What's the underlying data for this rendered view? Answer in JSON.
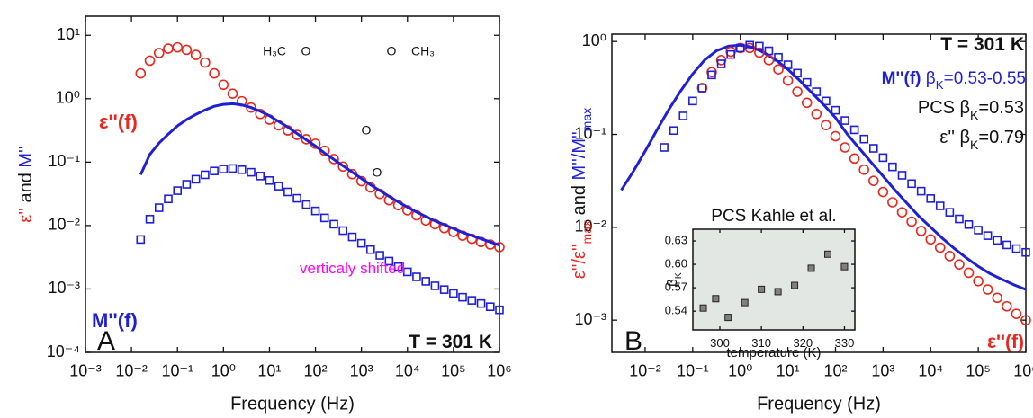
{
  "chart_data": [
    {
      "type": "scatter",
      "xscale": "log",
      "yscale": "log",
      "x_label": "Frequency (Hz)",
      "y_label": [
        {
          "text": "ε''",
          "color": "#e8281e"
        },
        {
          "text": " and "
        },
        {
          "text": "M''",
          "color": "#1f1fd6"
        }
      ],
      "xlim": [
        0.001,
        1000000
      ],
      "ylim": [
        0.0001,
        20
      ],
      "xticks": [
        {
          "value": 0.001,
          "label": "10⁻³"
        },
        {
          "value": 0.01,
          "label": "10⁻²"
        },
        {
          "value": 0.1,
          "label": "10⁻¹"
        },
        {
          "value": 1,
          "label": "10⁰"
        },
        {
          "value": 10,
          "label": "10¹"
        },
        {
          "value": 100,
          "label": "10²"
        },
        {
          "value": 1000,
          "label": "10³"
        },
        {
          "value": 10000,
          "label": "10⁴"
        },
        {
          "value": 100000,
          "label": "10⁵"
        },
        {
          "value": 1000000,
          "label": "10⁶"
        }
      ],
      "yticks": [
        {
          "value": 0.0001,
          "label": "10⁻⁴"
        },
        {
          "value": 0.001,
          "label": "10⁻³"
        },
        {
          "value": 0.01,
          "label": "10⁻²"
        },
        {
          "value": 0.1,
          "label": "10⁻¹"
        },
        {
          "value": 1,
          "label": "10⁰"
        },
        {
          "value": 10,
          "label": "10¹"
        }
      ],
      "series": [
        {
          "marker": "circle",
          "color": "#e8281e",
          "x": [
            0.0158,
            0.0251,
            0.0398,
            0.0631,
            0.1,
            0.158,
            0.251,
            0.398,
            0.631,
            1,
            1.58,
            2.51,
            3.98,
            6.31,
            10,
            15.8,
            25.1,
            39.8,
            63.1,
            100,
            158,
            251,
            398,
            631,
            1000,
            1580,
            2510,
            3980,
            6310,
            10000,
            15800,
            25100,
            39800,
            63100,
            100000,
            158000,
            251000,
            398000,
            631000,
            1000000
          ],
          "values": [
            2.51,
            3.98,
            5.25,
            6.17,
            6.46,
            5.89,
            4.9,
            3.72,
            2.51,
            1.66,
            1.2,
            0.912,
            0.724,
            0.575,
            0.468,
            0.38,
            0.316,
            0.269,
            0.229,
            0.195,
            0.151,
            0.112,
            0.0851,
            0.0646,
            0.0501,
            0.0398,
            0.0316,
            0.0251,
            0.0209,
            0.0174,
            0.0145,
            0.012,
            0.0105,
            0.00912,
            0.00794,
            0.00692,
            0.00617,
            0.0055,
            0.00501,
            0.00457
          ]
        },
        {
          "marker": "square",
          "color": "#1f1fd6",
          "x": [
            0.0158,
            0.0251,
            0.0398,
            0.0631,
            0.1,
            0.158,
            0.251,
            0.398,
            0.631,
            1,
            1.58,
            2.51,
            3.98,
            6.31,
            10,
            15.8,
            25.1,
            39.8,
            63.1,
            100,
            158,
            251,
            398,
            631,
            1000,
            1580,
            2510,
            3980,
            6310,
            10000,
            15800,
            25100,
            39800,
            63100,
            100000,
            158000,
            251000,
            398000,
            631000,
            1000000
          ],
          "values": [
            0.00603,
            0.0126,
            0.0191,
            0.0263,
            0.0355,
            0.0447,
            0.0537,
            0.0631,
            0.0724,
            0.0776,
            0.0794,
            0.0759,
            0.0692,
            0.0603,
            0.0513,
            0.0417,
            0.0339,
            0.0269,
            0.0214,
            0.017,
            0.0132,
            0.0105,
            0.00832,
            0.00661,
            0.00525,
            0.00417,
            0.00339,
            0.00275,
            0.00224,
            0.00186,
            0.00155,
            0.00132,
            0.00112,
            0.000977,
            0.000851,
            0.000741,
            0.000661,
            0.000589,
            0.000525,
            0.000468
          ]
        },
        {
          "marker": "line",
          "color": "#1f1fd6",
          "x": [
            0.0158,
            0.0251,
            0.0398,
            0.0631,
            0.1,
            0.158,
            0.251,
            0.398,
            0.631,
            1,
            1.58,
            2.51,
            3.98,
            6.31,
            10,
            15.8,
            25.1,
            39.8,
            63.1,
            100,
            158,
            251,
            398,
            631,
            1000,
            1580,
            2510,
            3980,
            6310,
            10000,
            15800,
            25100,
            39800,
            63100,
            100000,
            158000,
            251000,
            398000,
            631000,
            1000000
          ],
          "values": [
            0.0633,
            0.132,
            0.2,
            0.276,
            0.373,
            0.469,
            0.564,
            0.663,
            0.76,
            0.815,
            0.834,
            0.797,
            0.727,
            0.633,
            0.539,
            0.438,
            0.356,
            0.282,
            0.225,
            0.179,
            0.139,
            0.11,
            0.0874,
            0.0694,
            0.0551,
            0.0438,
            0.0356,
            0.0289,
            0.0235,
            0.0195,
            0.0163,
            0.0139,
            0.0118,
            0.0103,
            0.00894,
            0.00778,
            0.00694,
            0.00618,
            0.00551,
            0.00491
          ]
        }
      ],
      "annotations": [
        {
          "segments": [
            {
              "text": "ε''(f)",
              "bold": true,
              "color": "#e8281e"
            }
          ]
        },
        {
          "segments": [
            {
              "text": "M''(f)",
              "bold": true,
              "color": "#1f1fd6"
            }
          ]
        },
        {
          "segments": [
            {
              "text": "verticaly shifted",
              "color": "#ff00ff"
            }
          ]
        },
        {
          "segments": [
            {
              "text": "A"
            }
          ]
        },
        {
          "segments": [
            {
              "text": "T = 301 K",
              "bold": true
            }
          ]
        }
      ],
      "structure_labels": [
        "H₃C",
        "O",
        "O",
        "CH₃",
        "O",
        "O"
      ]
    },
    {
      "type": "scatter",
      "xscale": "log",
      "yscale": "log",
      "x_label": "Frequency (Hz)",
      "y_label": [
        {
          "text": "ε''/ε''",
          "color": "#e8281e"
        },
        {
          "text": "max",
          "sub": true,
          "color": "#e8281e"
        },
        {
          "text": " and "
        },
        {
          "text": "M''/M''",
          "color": "#1f1fd6"
        },
        {
          "text": "max",
          "sub": true,
          "color": "#1f1fd6"
        }
      ],
      "xlim": [
        0.002,
        1000000
      ],
      "ylim": [
        0.00045,
        1.2
      ],
      "xticks": [
        {
          "value": 0.01,
          "label": "10⁻²"
        },
        {
          "value": 0.1,
          "label": "10⁻¹"
        },
        {
          "value": 1,
          "label": "10⁰"
        },
        {
          "value": 10,
          "label": "10¹"
        },
        {
          "value": 100,
          "label": "10²"
        },
        {
          "value": 1000,
          "label": "10³"
        },
        {
          "value": 10000,
          "label": "10⁴"
        },
        {
          "value": 100000,
          "label": "10⁵"
        },
        {
          "value": 1000000,
          "label": "10⁶"
        }
      ],
      "yticks": [
        {
          "value": 0.001,
          "label": "10⁻³"
        },
        {
          "value": 0.01,
          "label": "10⁻²"
        },
        {
          "value": 0.1,
          "label": "10⁻¹"
        },
        {
          "value": 1,
          "label": "10⁰"
        }
      ],
      "series": [
        {
          "marker": "line",
          "color": "#1f1fd6",
          "x": [
            0.00316,
            0.00562,
            0.01,
            0.0178,
            0.0316,
            0.0562,
            0.1,
            0.178,
            0.316,
            0.562,
            1,
            1.78,
            3.16,
            5.62,
            10,
            17.8,
            31.6,
            56.2,
            100,
            178,
            316,
            562,
            1000,
            1780,
            3160,
            5620,
            10000,
            17800,
            31600,
            56200,
            100000,
            178000,
            316000,
            562000,
            1000000
          ],
          "values": [
            0.0251,
            0.0398,
            0.0661,
            0.112,
            0.186,
            0.295,
            0.447,
            0.631,
            0.794,
            0.891,
            0.912,
            0.871,
            0.759,
            0.631,
            0.501,
            0.38,
            0.282,
            0.209,
            0.151,
            0.1,
            0.0708,
            0.0501,
            0.0355,
            0.0251,
            0.0182,
            0.0132,
            0.01,
            0.00759,
            0.00589,
            0.00468,
            0.0038,
            0.00316,
            0.00275,
            0.0024,
            0.00214
          ]
        },
        {
          "marker": "circle",
          "color": "#e8281e",
          "x": [
            0.158,
            0.251,
            0.398,
            0.631,
            1,
            1.58,
            2.51,
            3.98,
            6.31,
            10,
            15.8,
            25.1,
            39.8,
            63.1,
            100,
            158,
            251,
            398,
            631,
            1000,
            1580,
            2510,
            3980,
            6310,
            10000,
            15800,
            25100,
            39800,
            63100,
            100000,
            158000,
            251000,
            398000,
            631000,
            1000000
          ],
          "values": [
            0.316,
            0.468,
            0.631,
            0.776,
            0.851,
            0.851,
            0.759,
            0.631,
            0.501,
            0.38,
            0.288,
            0.219,
            0.166,
            0.126,
            0.0955,
            0.0724,
            0.055,
            0.0417,
            0.0316,
            0.024,
            0.0186,
            0.0145,
            0.0115,
            0.00912,
            0.00741,
            0.00603,
            0.0049,
            0.00398,
            0.00324,
            0.00263,
            0.00214,
            0.00174,
            0.00141,
            0.00117,
            0.001
          ]
        },
        {
          "marker": "square",
          "color": "#1f1fd6",
          "x": [
            0.0251,
            0.0398,
            0.0631,
            0.1,
            0.158,
            0.251,
            0.398,
            0.631,
            1,
            1.58,
            2.51,
            3.98,
            6.31,
            10,
            15.8,
            25.1,
            39.8,
            63.1,
            100,
            158,
            251,
            398,
            631,
            1000,
            1580,
            2510,
            3980,
            6310,
            10000,
            15800,
            25100,
            39800,
            63100,
            100000,
            158000,
            251000,
            398000,
            631000,
            1000000
          ],
          "values": [
            0.0724,
            0.11,
            0.158,
            0.229,
            0.316,
            0.437,
            0.575,
            0.724,
            0.851,
            0.912,
            0.891,
            0.794,
            0.676,
            0.562,
            0.457,
            0.363,
            0.288,
            0.229,
            0.182,
            0.141,
            0.112,
            0.0891,
            0.0708,
            0.0562,
            0.0447,
            0.0363,
            0.0295,
            0.0245,
            0.0204,
            0.017,
            0.0145,
            0.0123,
            0.0107,
            0.00933,
            0.00813,
            0.00724,
            0.00646,
            0.00589,
            0.00537
          ]
        }
      ],
      "annotations": [
        {
          "segments": [
            {
              "text": "T = 301 K",
              "bold": true
            }
          ]
        },
        {
          "segments": [
            {
              "text": "M''(f)",
              "bold": true,
              "color": "#1f1fd6"
            },
            {
              "text": " β",
              "color": "#1f1fd6"
            },
            {
              "text": "K",
              "sub": true,
              "color": "#1f1fd6"
            },
            {
              "text": "=0.53-0.55",
              "color": "#1f1fd6"
            }
          ]
        },
        {
          "segments": [
            {
              "text": "PCS β"
            },
            {
              "text": "K",
              "sub": true
            },
            {
              "text": "=0.53"
            }
          ]
        },
        {
          "segments": [
            {
              "text": "ε'' β"
            },
            {
              "text": "K",
              "sub": true
            },
            {
              "text": "=0.79"
            }
          ]
        },
        {
          "segments": [
            {
              "text": "B"
            }
          ]
        },
        {
          "segments": [
            {
              "text": "ε''(f)",
              "bold": true,
              "color": "#e8281e"
            }
          ]
        }
      ]
    },
    {
      "type": "scatter",
      "xscale": "linear",
      "yscale": "linear",
      "title": "PCS Kahle et al.",
      "x_label": "temperature (K)",
      "y_label": [
        {
          "text": "β"
        },
        {
          "text": "K",
          "sub": true
        }
      ],
      "xlim": [
        293.5,
        332.5
      ],
      "ylim": [
        0.516,
        0.645
      ],
      "xticks": [
        300,
        310,
        320,
        330
      ],
      "yticks": [
        0.54,
        0.57,
        {
          "value": 0.6,
          "label": "0.60"
        },
        0.63
      ],
      "series": [
        {
          "marker": "filled_square",
          "color": "#808080",
          "x": [
            296,
            299,
            302,
            306,
            310,
            314,
            318,
            322,
            326,
            330
          ],
          "values": [
            0.544,
            0.556,
            0.532,
            0.551,
            0.568,
            0.565,
            0.573,
            0.595,
            0.613,
            0.597
          ]
        }
      ],
      "annotations": []
    }
  ]
}
